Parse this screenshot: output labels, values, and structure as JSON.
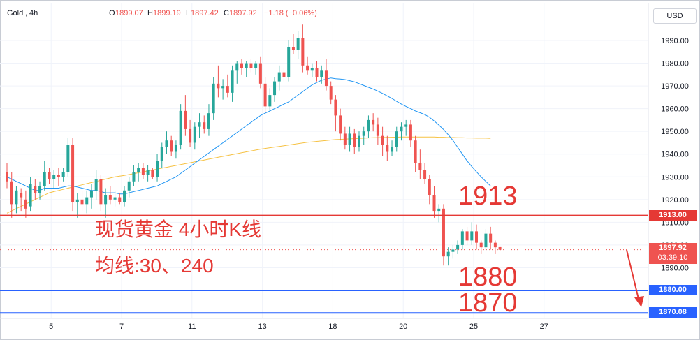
{
  "header": {
    "symbol": "Gold",
    "interval": "4h",
    "open_label": "O",
    "open": "1899.07",
    "high_label": "H",
    "high": "1899.19",
    "low_label": "L",
    "low": "1897.42",
    "close_label": "C",
    "close": "1897.92",
    "change": "−1.18 (−0.06%)"
  },
  "currency_button": "USD",
  "annotations": {
    "title": "现货黄金 4小时K线",
    "ma_note": "均线:30、240",
    "level_1913": "1913",
    "level_1880": "1880",
    "level_1870": "1870"
  },
  "price_tags": {
    "tag_1913": "1913.00",
    "current": "1897.92",
    "countdown": "03:39:10",
    "tag_1880": "1880.00",
    "tag_1870": "1870.08"
  },
  "colors": {
    "up": "#26a69a",
    "down": "#ef5350",
    "ma30": "#2196f3",
    "ma240": "#f6c244",
    "line_red": "#e53935",
    "line_blue": "#2962ff"
  },
  "chart_data": {
    "type": "candlestick",
    "ylim": [
      1862,
      2002
    ],
    "y_ticks": [
      1890,
      1900,
      1910,
      1920,
      1930,
      1940,
      1950,
      1960,
      1970,
      1980,
      1990
    ],
    "y_tick_labels": [
      "1890.00",
      "1900.00",
      "1910.00",
      "1920.00",
      "1930.00",
      "1940.00",
      "1950.00",
      "1960.00",
      "1970.00",
      "1980.00",
      "1990.00"
    ],
    "x_tick_labels": [
      "5",
      "7",
      "11",
      "13",
      "18",
      "20",
      "25",
      "27"
    ],
    "x_tick_bar_index": [
      10,
      25,
      40,
      55,
      70,
      85,
      100,
      115
    ],
    "horizontal_lines": [
      {
        "value": 1913.0,
        "color": "red"
      },
      {
        "value": 1880.0,
        "color": "blue"
      },
      {
        "value": 1870.08,
        "color": "blue"
      }
    ],
    "current_price": 1897.92,
    "candles": [
      [
        1932,
        1936,
        1925,
        1928
      ],
      [
        1928,
        1932,
        1912,
        1918
      ],
      [
        1918,
        1926,
        1914,
        1924
      ],
      [
        1923,
        1925,
        1915,
        1921
      ],
      [
        1920,
        1924,
        1912,
        1916
      ],
      [
        1917,
        1930,
        1915,
        1927
      ],
      [
        1926,
        1929,
        1920,
        1923
      ],
      [
        1923,
        1928,
        1920,
        1926
      ],
      [
        1926,
        1937,
        1924,
        1932
      ],
      [
        1932,
        1934,
        1927,
        1929
      ],
      [
        1929,
        1933,
        1925,
        1931
      ],
      [
        1931,
        1934,
        1926,
        1930
      ],
      [
        1930,
        1934,
        1928,
        1932
      ],
      [
        1932,
        1947,
        1930,
        1944
      ],
      [
        1944,
        1947,
        1915,
        1919
      ],
      [
        1919,
        1923,
        1912,
        1920
      ],
      [
        1920,
        1924,
        1915,
        1918
      ],
      [
        1918,
        1924,
        1914,
        1921
      ],
      [
        1921,
        1927,
        1916,
        1924
      ],
      [
        1924,
        1933,
        1920,
        1929
      ],
      [
        1929,
        1931,
        1915,
        1918
      ],
      [
        1918,
        1925,
        1912,
        1922
      ],
      [
        1922,
        1926,
        1918,
        1920
      ],
      [
        1920,
        1924,
        1917,
        1921
      ],
      [
        1921,
        1923,
        1918,
        1919
      ],
      [
        1919,
        1926,
        1917,
        1924
      ],
      [
        1924,
        1930,
        1921,
        1928
      ],
      [
        1928,
        1935,
        1926,
        1932
      ],
      [
        1932,
        1936,
        1928,
        1934
      ],
      [
        1934,
        1936,
        1929,
        1931
      ],
      [
        1931,
        1935,
        1928,
        1933
      ],
      [
        1933,
        1934,
        1929,
        1930
      ],
      [
        1930,
        1940,
        1928,
        1937
      ],
      [
        1937,
        1945,
        1934,
        1943
      ],
      [
        1943,
        1950,
        1940,
        1946
      ],
      [
        1946,
        1948,
        1939,
        1941
      ],
      [
        1941,
        1946,
        1938,
        1944
      ],
      [
        1944,
        1962,
        1942,
        1959
      ],
      [
        1959,
        1966,
        1948,
        1951
      ],
      [
        1951,
        1955,
        1943,
        1945
      ],
      [
        1945,
        1954,
        1942,
        1952
      ],
      [
        1952,
        1958,
        1947,
        1954
      ],
      [
        1954,
        1957,
        1949,
        1951
      ],
      [
        1951,
        1962,
        1948,
        1958
      ],
      [
        1958,
        1974,
        1955,
        1971
      ],
      [
        1971,
        1979,
        1965,
        1969
      ],
      [
        1969,
        1973,
        1964,
        1970
      ],
      [
        1970,
        1975,
        1965,
        1967
      ],
      [
        1967,
        1979,
        1963,
        1977
      ],
      [
        1977,
        1981,
        1971,
        1980
      ],
      [
        1980,
        1982,
        1975,
        1978
      ],
      [
        1978,
        1981,
        1974,
        1980
      ],
      [
        1980,
        1982,
        1976,
        1978
      ],
      [
        1978,
        1981,
        1975,
        1980
      ],
      [
        1980,
        1983,
        1969,
        1971
      ],
      [
        1971,
        1974,
        1958,
        1961
      ],
      [
        1961,
        1969,
        1959,
        1966
      ],
      [
        1966,
        1974,
        1963,
        1972
      ],
      [
        1972,
        1979,
        1968,
        1976
      ],
      [
        1976,
        1978,
        1972,
        1974
      ],
      [
        1974,
        1990,
        1972,
        1987
      ],
      [
        1987,
        1993,
        1984,
        1986
      ],
      [
        1986,
        1994,
        1982,
        1991
      ],
      [
        1991,
        1997,
        1976,
        1979
      ],
      [
        1979,
        1983,
        1975,
        1977
      ],
      [
        1977,
        1980,
        1974,
        1978
      ],
      [
        1978,
        1981,
        1972,
        1974
      ],
      [
        1974,
        1979,
        1971,
        1977
      ],
      [
        1977,
        1982,
        1968,
        1970
      ],
      [
        1970,
        1972,
        1962,
        1964
      ],
      [
        1964,
        1966,
        1950,
        1957
      ],
      [
        1957,
        1960,
        1946,
        1949
      ],
      [
        1949,
        1952,
        1942,
        1944
      ],
      [
        1944,
        1952,
        1941,
        1949
      ],
      [
        1949,
        1951,
        1940,
        1943
      ],
      [
        1943,
        1950,
        1941,
        1948
      ],
      [
        1948,
        1952,
        1944,
        1950
      ],
      [
        1950,
        1957,
        1947,
        1955
      ],
      [
        1955,
        1958,
        1950,
        1953
      ],
      [
        1953,
        1956,
        1944,
        1948
      ],
      [
        1948,
        1952,
        1939,
        1944
      ],
      [
        1944,
        1948,
        1937,
        1941
      ],
      [
        1941,
        1946,
        1939,
        1943
      ],
      [
        1943,
        1952,
        1941,
        1950
      ],
      [
        1950,
        1954,
        1946,
        1952
      ],
      [
        1952,
        1955,
        1948,
        1953
      ],
      [
        1953,
        1955,
        1943,
        1946
      ],
      [
        1946,
        1948,
        1932,
        1936
      ],
      [
        1936,
        1942,
        1929,
        1933
      ],
      [
        1933,
        1936,
        1927,
        1929
      ],
      [
        1929,
        1931,
        1918,
        1922
      ],
      [
        1922,
        1926,
        1912,
        1915
      ],
      [
        1915,
        1918,
        1910,
        1916
      ],
      [
        1916,
        1918,
        1891,
        1895
      ],
      [
        1895,
        1899,
        1891,
        1897
      ],
      [
        1897,
        1900,
        1894,
        1898
      ],
      [
        1898,
        1902,
        1896,
        1900
      ],
      [
        1900,
        1907,
        1898,
        1906
      ],
      [
        1906,
        1908,
        1900,
        1902
      ],
      [
        1902,
        1910,
        1900,
        1906
      ],
      [
        1906,
        1909,
        1898,
        1901
      ],
      [
        1901,
        1902,
        1896,
        1899
      ],
      [
        1899,
        1907,
        1898,
        1905
      ],
      [
        1905,
        1908,
        1898,
        1901
      ],
      [
        1901,
        1902,
        1896,
        1899
      ],
      [
        1899.07,
        1899.19,
        1897.42,
        1897.92
      ]
    ],
    "ma30": [
      1930,
      1929,
      1928,
      1927,
      1926,
      1925,
      1924,
      1924,
      1925,
      1925,
      1925,
      1925,
      1925.5,
      1926,
      1926,
      1925.5,
      1925,
      1924.5,
      1924,
      1924,
      1923.5,
      1923,
      1923,
      1923,
      1922.5,
      1922.5,
      1923,
      1923.5,
      1924,
      1924.5,
      1925,
      1925.5,
      1926,
      1927,
      1928,
      1929,
      1930,
      1931.5,
      1933,
      1934.5,
      1936,
      1937.5,
      1939,
      1940.5,
      1942,
      1943.5,
      1945,
      1946.5,
      1948,
      1949.5,
      1951,
      1952.5,
      1954,
      1955.5,
      1957,
      1958,
      1959,
      1960,
      1961,
      1962,
      1963,
      1964.5,
      1966,
      1967.5,
      1969,
      1970.5,
      1971.5,
      1972.5,
      1973,
      1973.5,
      1973.2,
      1973,
      1972.8,
      1972.3,
      1971.8,
      1971,
      1970.2,
      1969.4,
      1968.6,
      1967.7,
      1966.7,
      1965.6,
      1964.5,
      1963.2,
      1962,
      1961,
      1960,
      1959,
      1958.2,
      1957.4,
      1956.2,
      1954.6,
      1952.8,
      1950.8,
      1948.5,
      1946,
      1943,
      1940,
      1937,
      1934.5,
      1932.2,
      1930,
      1928,
      1926
    ],
    "ma240": [
      1914,
      1915,
      1916,
      1917,
      1918,
      1919,
      1920,
      1921,
      1922,
      1923,
      1923.5,
      1924,
      1924.5,
      1925,
      1925.5,
      1926,
      1926.5,
      1927,
      1927.5,
      1928,
      1928.5,
      1929,
      1929.5,
      1930,
      1930.3,
      1930.6,
      1931,
      1931.4,
      1931.8,
      1932.2,
      1932.6,
      1933,
      1933.4,
      1933.8,
      1934.2,
      1934.6,
      1935,
      1935.4,
      1935.8,
      1936.2,
      1936.6,
      1937,
      1937.4,
      1937.8,
      1938.2,
      1938.6,
      1939,
      1939.4,
      1939.8,
      1940.2,
      1940.6,
      1941,
      1941.4,
      1941.8,
      1942.2,
      1942.5,
      1942.8,
      1943.1,
      1943.4,
      1943.7,
      1944,
      1944.3,
      1944.6,
      1944.9,
      1945.2,
      1945.4,
      1945.6,
      1945.8,
      1946,
      1946.2,
      1946.4,
      1946.5,
      1946.6,
      1946.7,
      1946.8,
      1946.9,
      1947,
      1947.1,
      1947.2,
      1947.25,
      1947.3,
      1947.35,
      1947.4,
      1947.45,
      1947.5,
      1947.5,
      1947.5,
      1947.5,
      1947.5,
      1947.5,
      1947.5,
      1947.5,
      1947.4,
      1947.4,
      1947.3,
      1947.3,
      1947.2,
      1947.2,
      1947.1,
      1947.1,
      1947.0,
      1947.0,
      1947.0,
      1946.9
    ]
  }
}
